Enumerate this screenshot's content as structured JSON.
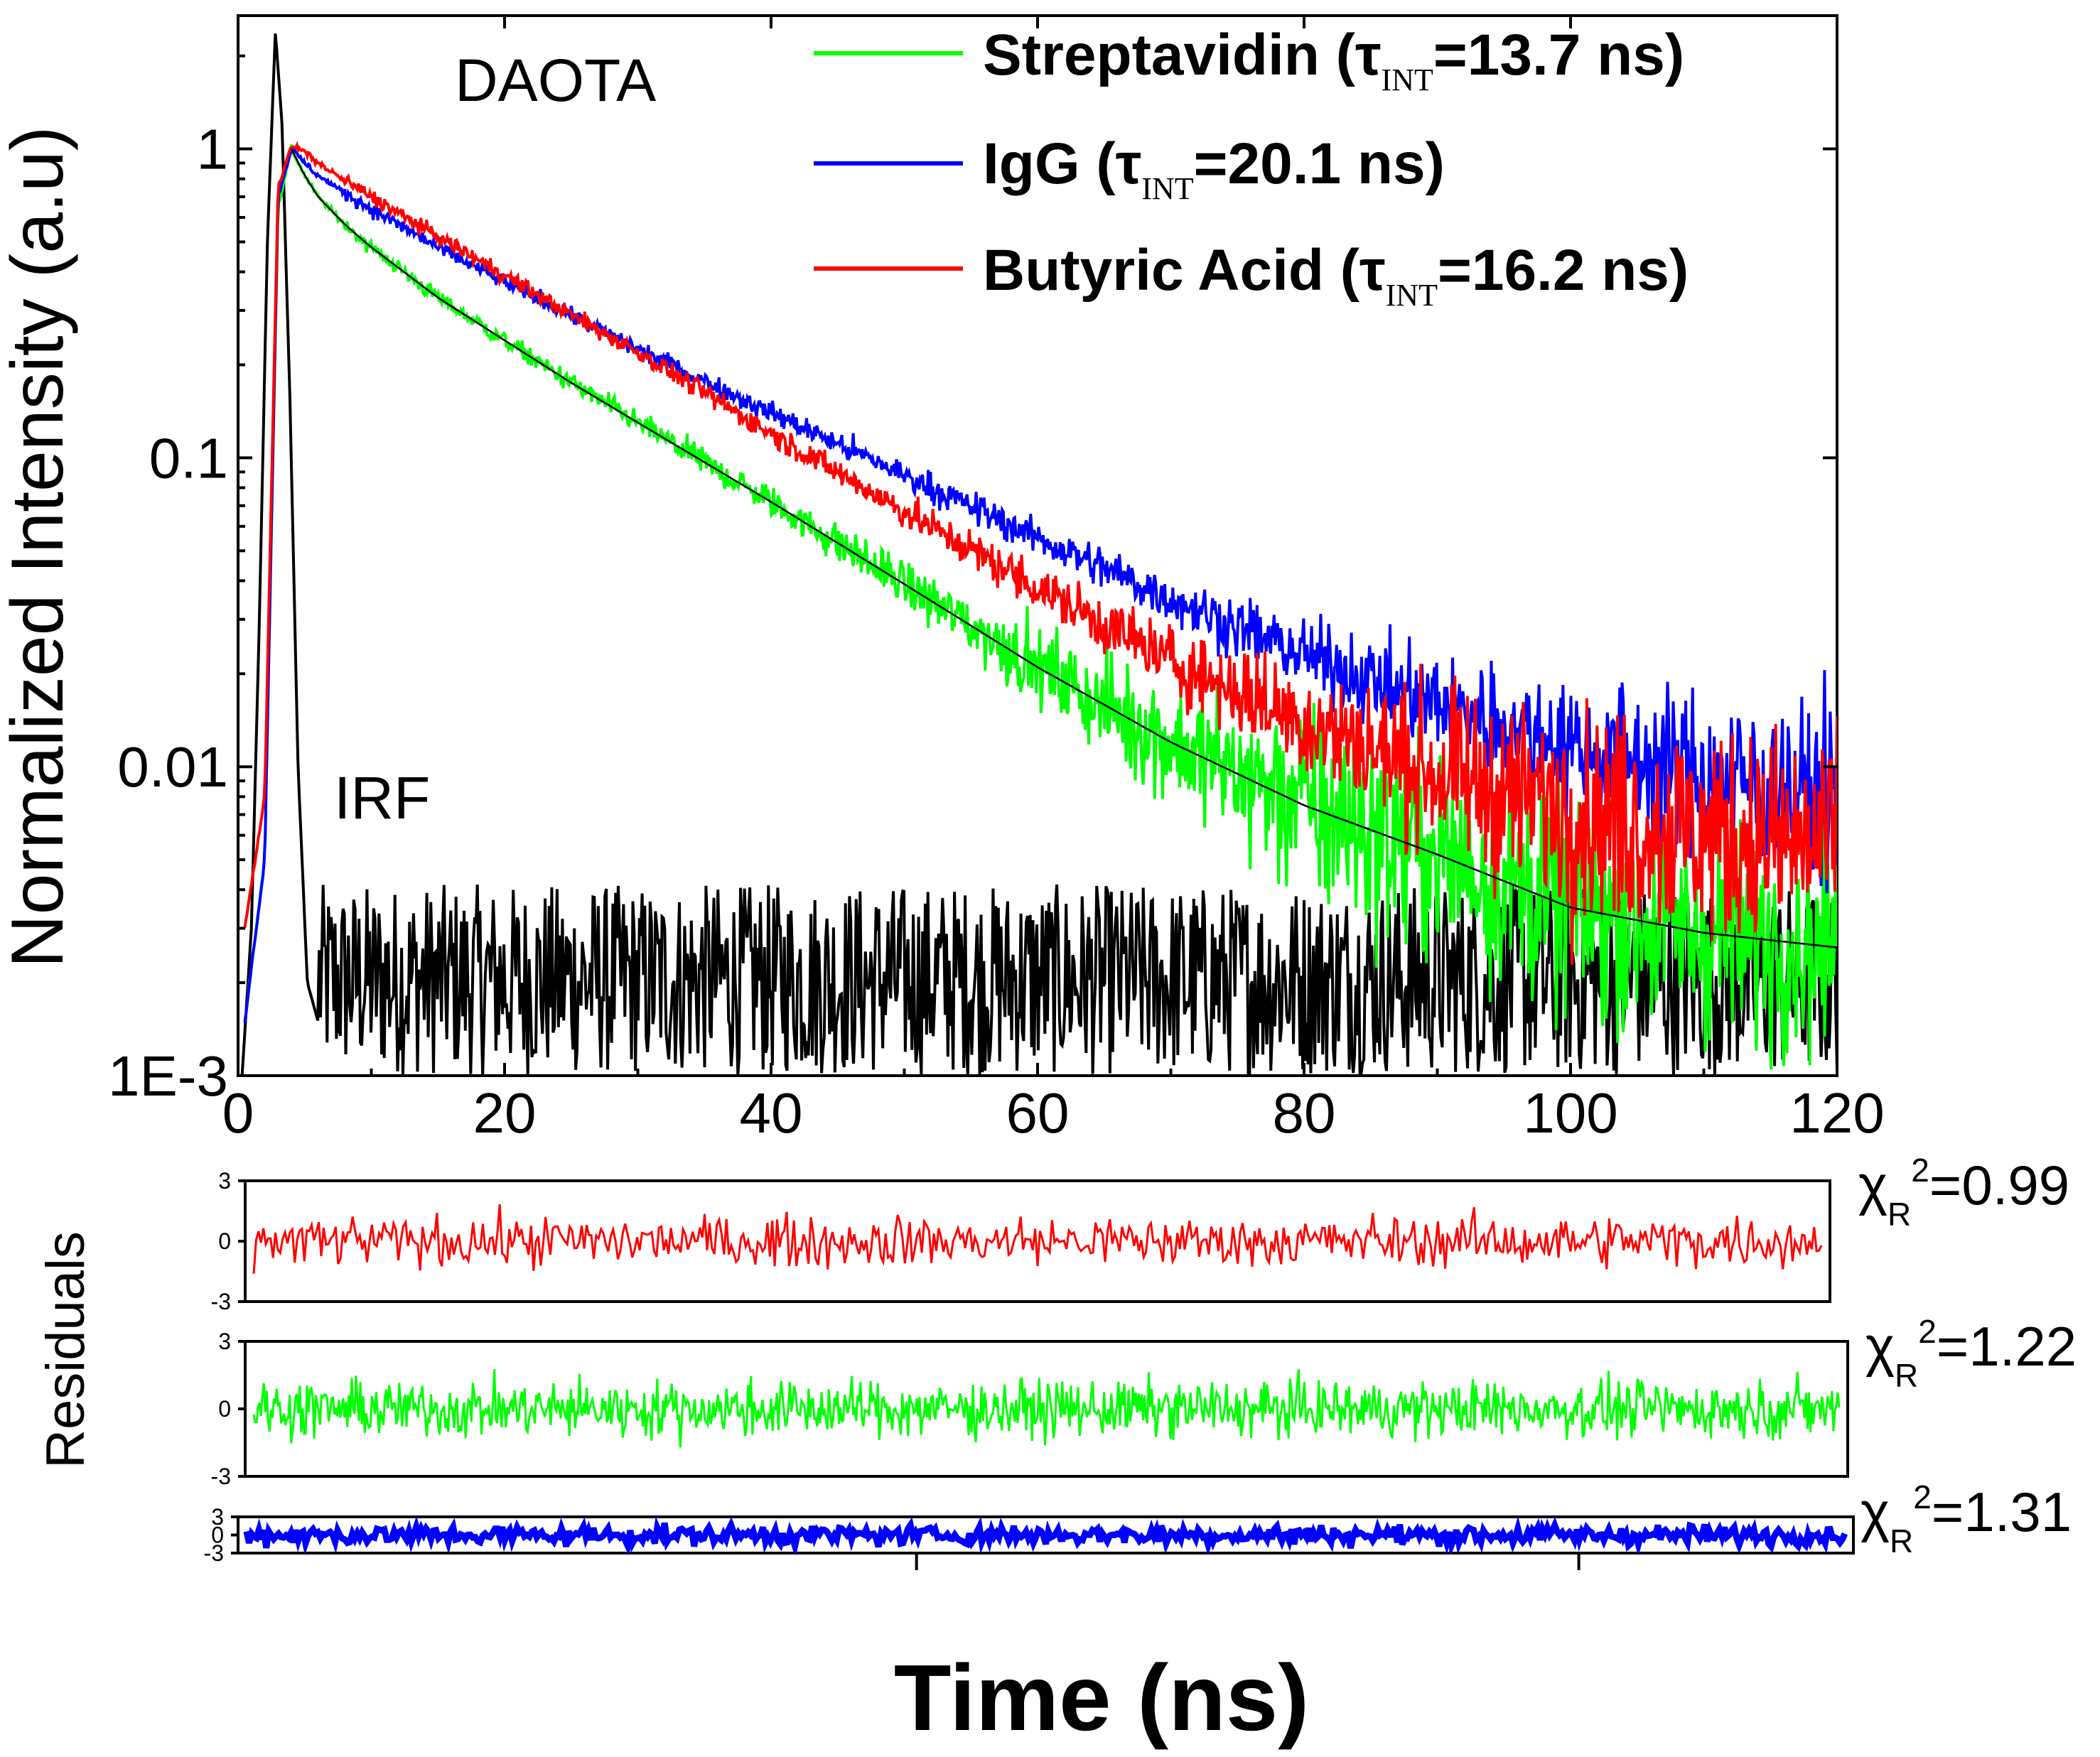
{
  "chart_data": [
    {
      "type": "line",
      "subtitle": "DAOTA",
      "ylabel": "Normalized Intensity (a.u)",
      "yscale": "log",
      "xlim": [
        0,
        120
      ],
      "ylim": [
        0.001,
        2.7
      ],
      "x_ticks": [
        "0",
        "20",
        "40",
        "60",
        "80",
        "100",
        "120"
      ],
      "y_ticks": [
        "1E-3",
        "0.01",
        "0.1",
        "1"
      ],
      "legend_position": "top-right",
      "annotations": [
        "IRF"
      ],
      "series": [
        {
          "name": "Streptavidin (τ_INT=13.7 ns)",
          "label_main": "Streptavidin (τ",
          "label_sub": "INT",
          "label_tail": "=13.7 ns)",
          "color": "#00ff00",
          "x": [
            0.5,
            2.0,
            3.0,
            4.0,
            5,
            6,
            8,
            10,
            15,
            20,
            25,
            30,
            40,
            50,
            60,
            70,
            80,
            90,
            100,
            110,
            120
          ],
          "y": [
            0.0015,
            0.005,
            0.65,
            1.0,
            0.82,
            0.7,
            0.57,
            0.48,
            0.33,
            0.24,
            0.175,
            0.13,
            0.072,
            0.039,
            0.021,
            0.012,
            0.0075,
            0.0052,
            0.0035,
            0.0029,
            0.0026
          ]
        },
        {
          "name": "IgG (τ_INT=20.1 ns)",
          "label_main": "IgG (τ",
          "label_sub": "INT",
          "label_tail": "=20.1 ns)",
          "color": "#0000ff",
          "x": [
            0.5,
            2.0,
            3.0,
            4.0,
            5,
            6,
            8,
            10,
            15,
            20,
            25,
            30,
            40,
            50,
            60,
            70,
            80,
            90,
            100,
            110,
            120
          ],
          "y": [
            0.0015,
            0.005,
            0.7,
            1.0,
            0.9,
            0.82,
            0.72,
            0.64,
            0.48,
            0.37,
            0.29,
            0.225,
            0.14,
            0.088,
            0.055,
            0.035,
            0.023,
            0.016,
            0.012,
            0.0095,
            0.008
          ]
        },
        {
          "name": "Butyric Acid (τ_INT=16.2 ns)",
          "label_main": "Butyric Acid (τ",
          "label_sub": "INT",
          "label_tail": "=16.2 ns)",
          "color": "#ff0000",
          "x": [
            0.5,
            2.0,
            3.0,
            4.0,
            5,
            6,
            8,
            10,
            15,
            20,
            25,
            30,
            40,
            50,
            60,
            70,
            80,
            90,
            100,
            110,
            120
          ],
          "y": [
            0.003,
            0.008,
            0.75,
            1.02,
            0.98,
            0.9,
            0.79,
            0.7,
            0.52,
            0.39,
            0.29,
            0.22,
            0.12,
            0.067,
            0.038,
            0.022,
            0.014,
            0.0095,
            0.0072,
            0.006,
            0.0055
          ]
        },
        {
          "name": "IRF",
          "color": "#000000",
          "x": [
            0.3,
            1.0,
            1.6,
            2.2,
            2.8,
            3.3,
            3.9,
            4.5,
            5.2,
            6.0
          ],
          "y": [
            0.001,
            0.003,
            0.03,
            0.5,
            2.4,
            1.2,
            0.15,
            0.01,
            0.002,
            0.0015
          ]
        }
      ]
    },
    {
      "type": "line",
      "ylabel": "Residuals",
      "xlabel": "Time (ns)",
      "ylim": [
        -3,
        3
      ],
      "y_ticks": [
        "3",
        "0",
        "-3"
      ],
      "panels": [
        {
          "color": "#ff0000",
          "chi_main": "χ",
          "chi_sub": "R",
          "chi_sup": "2",
          "chi_value": "=0.99"
        },
        {
          "color": "#00ff00",
          "chi_main": "χ",
          "chi_sub": "R",
          "chi_sup": "2",
          "chi_value": "=1.22"
        },
        {
          "color": "#0000ff",
          "chi_main": "χ",
          "chi_sub": "R",
          "chi_sup": "2",
          "chi_value": "=1.31"
        }
      ]
    }
  ]
}
